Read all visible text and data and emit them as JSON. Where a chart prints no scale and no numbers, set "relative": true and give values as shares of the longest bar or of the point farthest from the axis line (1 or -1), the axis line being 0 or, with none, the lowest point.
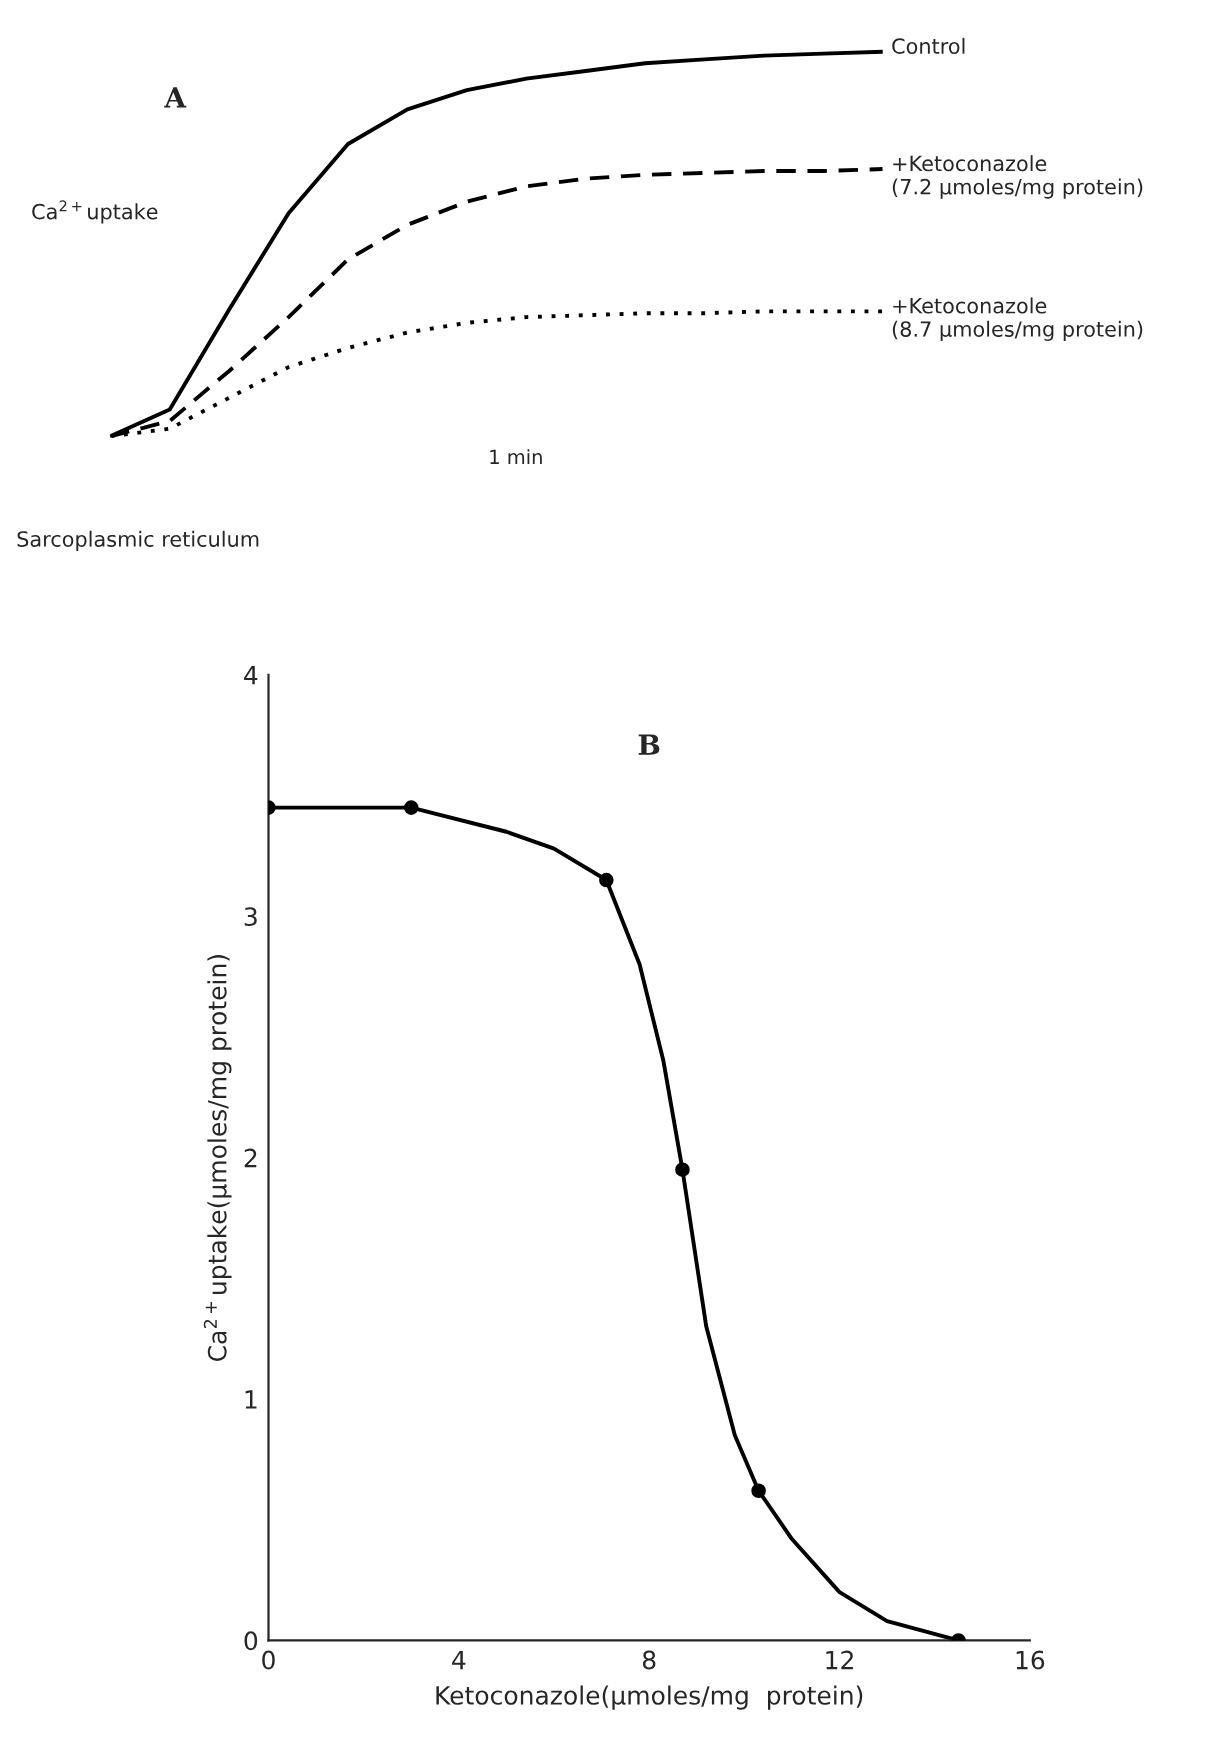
{
  "chart_data": [
    {
      "type": "line",
      "title": "A",
      "relative": true,
      "ylabel": "Ca$^{2+}$uptake",
      "categories": [
        null,
        null,
        null,
        null,
        null,
        null,
        null,
        null,
        null,
        null,
        null,
        null,
        null,
        null
      ],
      "series": [
        {
          "name": "Control",
          "color": "#000000",
          "line_style": "solid",
          "values": [
            0,
            0.07,
            0.33,
            0.58,
            0.76,
            0.85,
            0.9,
            0.93,
            0.95,
            0.97,
            0.98,
            0.99,
            0.995,
            1.0
          ]
        },
        {
          "name": "+Ketoconazole\n(7.2 µmoles/mg protein)",
          "color": "#000000",
          "line_style": "dashed",
          "values": [
            0,
            0.04,
            0.17,
            0.31,
            0.46,
            0.55,
            0.61,
            0.65,
            0.67,
            0.68,
            0.685,
            0.69,
            0.69,
            0.695
          ]
        },
        {
          "name": "+Ketoconazole\n(8.7 µmoles/mg protein)",
          "color": "#000000",
          "line_style": "dotted",
          "values": [
            0,
            0.02,
            0.1,
            0.18,
            0.23,
            0.27,
            0.295,
            0.31,
            0.315,
            0.32,
            0.32,
            0.325,
            0.325,
            0.325
          ]
        }
      ],
      "annotations": [
        "1 min",
        "Sarcoplasmic reticulum"
      ]
    },
    {
      "type": "line",
      "title": "B",
      "xlabel": "Ketoconazole(µmoles/mg  protein)",
      "ylabel": "Ca$^{2+}$uptake(µmoles/mg protein)",
      "xlim": [
        0,
        16
      ],
      "ylim": [
        0,
        4
      ],
      "xticks": [
        0,
        4,
        8,
        12,
        16
      ],
      "yticks": [
        0,
        1,
        2,
        3,
        4
      ],
      "series": [
        {
          "type": "line",
          "color": "#000000",
          "line_style": "solid",
          "x": [
            0,
            3,
            5,
            6,
            7.1,
            7.8,
            8.3,
            8.7,
            9.2,
            9.8,
            10.3,
            11,
            12,
            13,
            14.5
          ],
          "values": [
            3.45,
            3.45,
            3.35,
            3.28,
            3.15,
            2.8,
            2.4,
            1.95,
            1.3,
            0.85,
            0.62,
            0.42,
            0.2,
            0.08,
            0
          ]
        },
        {
          "type": "scatter",
          "color": "#000000",
          "marker": "circle",
          "x": [
            0,
            3,
            7.1,
            8.7,
            10.3,
            14.5
          ],
          "values": [
            3.45,
            3.45,
            3.15,
            1.95,
            0.62,
            0
          ]
        }
      ]
    }
  ]
}
